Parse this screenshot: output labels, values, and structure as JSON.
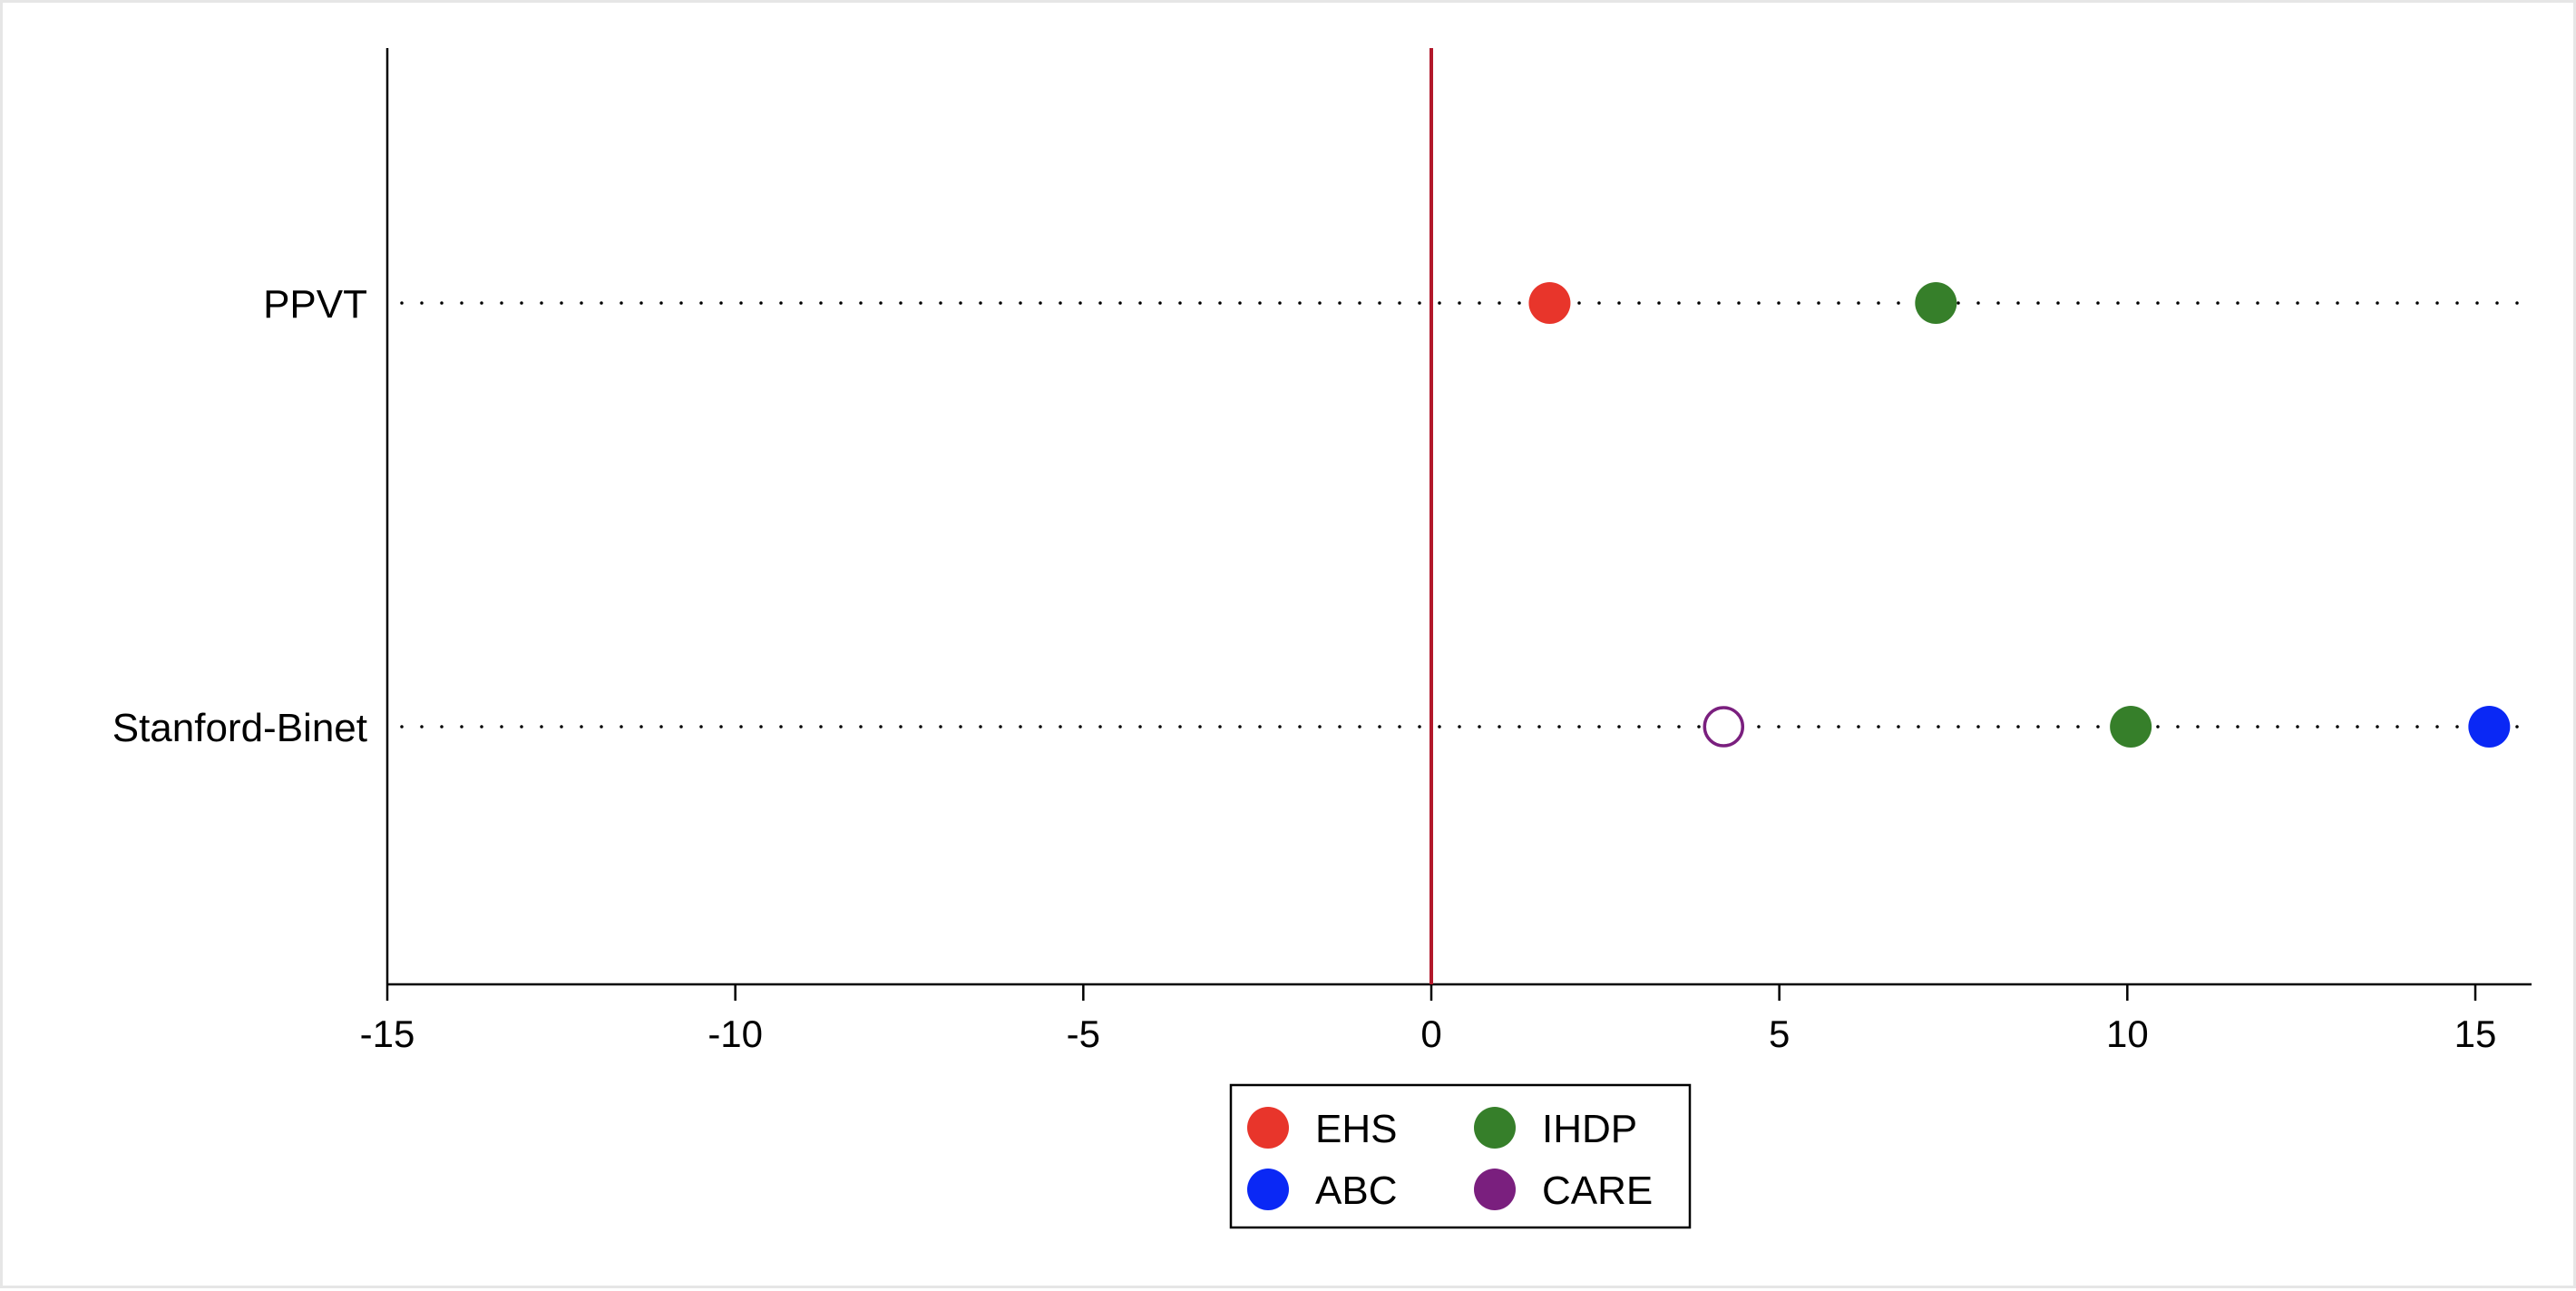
{
  "chart_data": {
    "type": "scatter",
    "title": "",
    "xlabel": "",
    "ylabel": "",
    "xlim": [
      -15,
      15.8
    ],
    "xticks": [
      -15,
      -10,
      -5,
      0,
      5,
      10,
      15
    ],
    "xtick_labels": [
      "-15",
      "-10",
      "-5",
      "0",
      "5",
      "10",
      "15"
    ],
    "categories": [
      "PPVT",
      "Stanford-Binet"
    ],
    "reference_line": {
      "x": 0,
      "color": "#b2182b"
    },
    "grid": "dotted horizontal lines at each category",
    "legend": {
      "placement": "bottom-center",
      "columns": 2
    },
    "series": [
      {
        "name": "EHS",
        "color": "#e8352b",
        "filled": true,
        "points": [
          {
            "category": "PPVT",
            "x": 1.7
          }
        ]
      },
      {
        "name": "IHDP",
        "color": "#367f2a",
        "filled": true,
        "points": [
          {
            "category": "PPVT",
            "x": 7.25
          },
          {
            "category": "Stanford-Binet",
            "x": 10.05
          }
        ]
      },
      {
        "name": "ABC",
        "color": "#0a28f5",
        "filled": true,
        "points": [
          {
            "category": "Stanford-Binet",
            "x": 15.2
          }
        ]
      },
      {
        "name": "CARE",
        "color": "#7a1f7e",
        "filled": false,
        "points": [
          {
            "category": "Stanford-Binet",
            "x": 4.2
          }
        ]
      }
    ]
  }
}
